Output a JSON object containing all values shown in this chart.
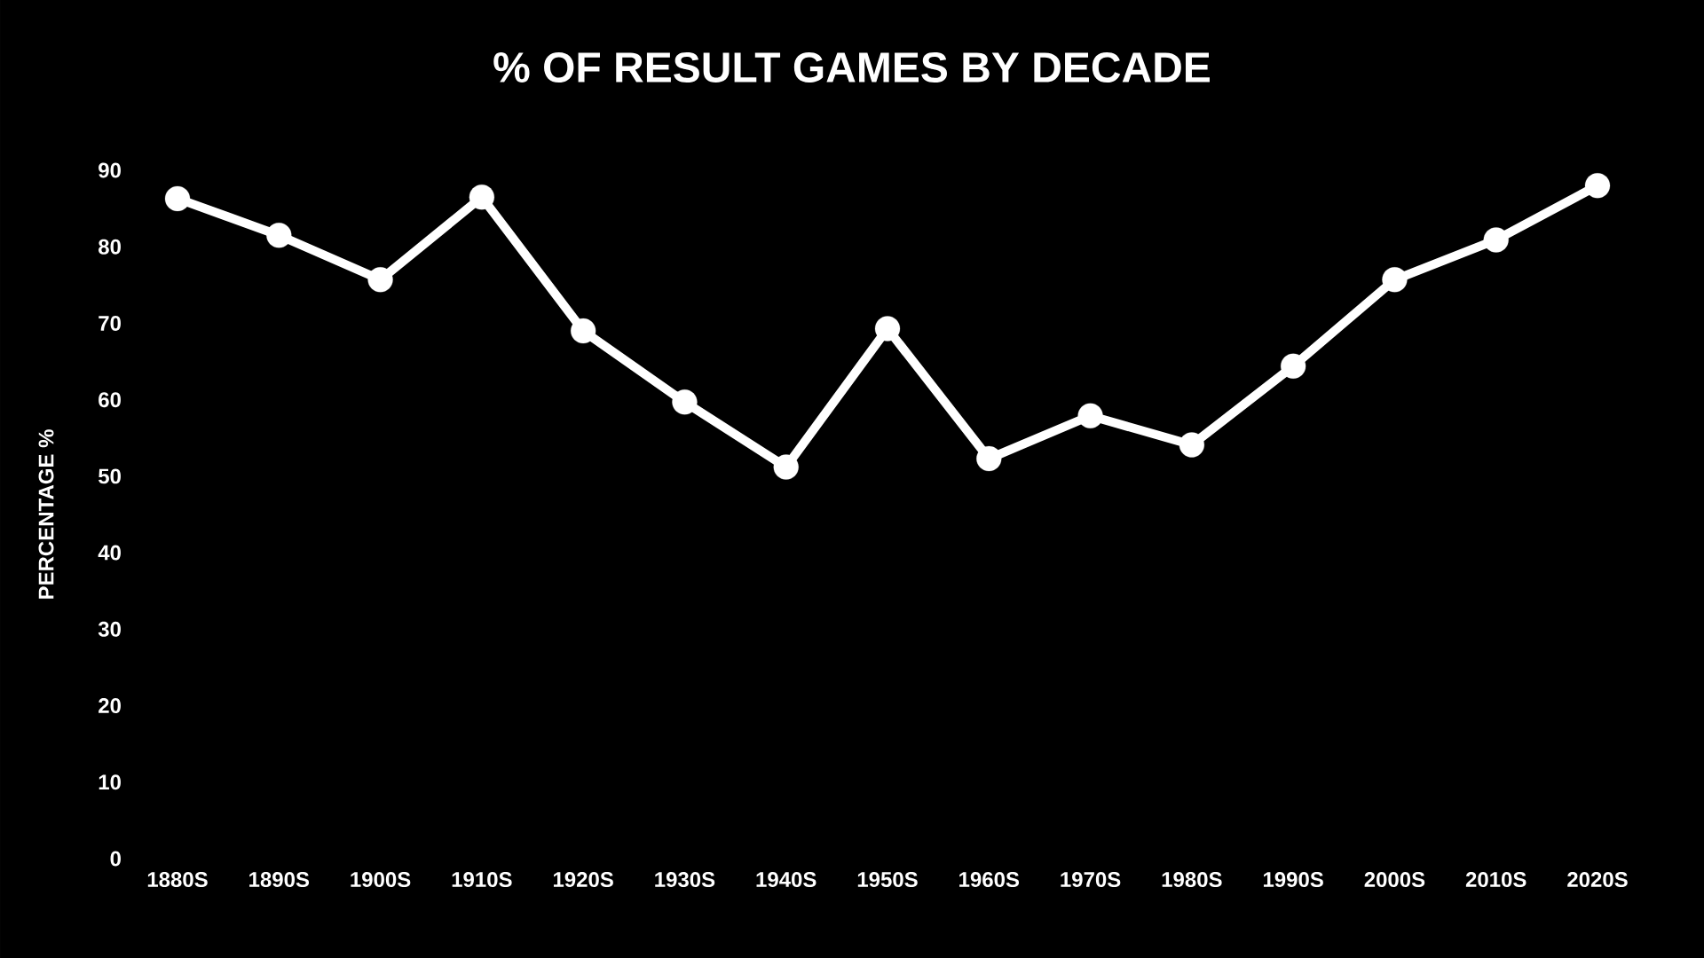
{
  "chart_data": {
    "type": "line",
    "title": "% OF RESULT GAMES BY DECADE",
    "ylabel": "PERCENTAGE %",
    "categories": [
      "1880S",
      "1890S",
      "1900S",
      "1910S",
      "1920S",
      "1930S",
      "1940S",
      "1950S",
      "1960S",
      "1970S",
      "1980S",
      "1990S",
      "2000S",
      "2010S",
      "2020S"
    ],
    "values": [
      86.3,
      81.5,
      75.7,
      86.5,
      69.0,
      59.7,
      51.2,
      69.3,
      52.3,
      57.9,
      54.1,
      64.4,
      75.7,
      80.9,
      88.0
    ],
    "color": "#ffffff",
    "marker": "circle",
    "ylim": [
      0,
      90
    ],
    "yticks": [
      0,
      10,
      20,
      30,
      40,
      50,
      60,
      70,
      80,
      90
    ]
  }
}
